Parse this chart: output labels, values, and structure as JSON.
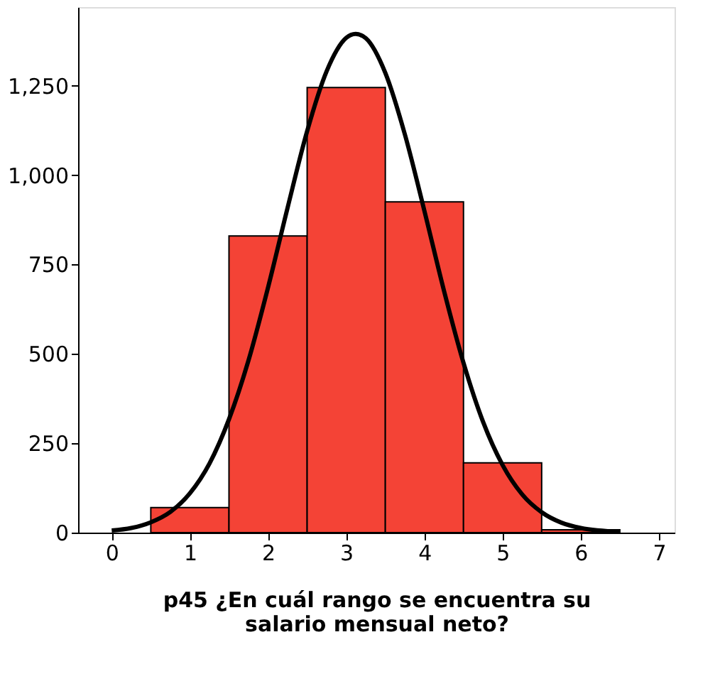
{
  "chart_data": {
    "type": "histogram",
    "xlabel": "p45 ¿En cuál rango se encuentra su\nsalario mensual neto?",
    "bins": [
      0.5,
      1.5,
      2.5,
      3.5,
      4.5,
      5.5,
      6.5
    ],
    "values": [
      70,
      830,
      1245,
      925,
      195,
      8
    ],
    "color": "#f44336",
    "series": [
      {
        "type": "line",
        "color": "#000000",
        "x": [
          0,
          0.25,
          0.5,
          0.75,
          1,
          1.25,
          1.5,
          1.75,
          2,
          2.25,
          2.5,
          2.75,
          3,
          3.12,
          3.25,
          3.5,
          3.75,
          4,
          4.25,
          4.5,
          4.75,
          5,
          5.25,
          5.5,
          5.75,
          6,
          6.5
        ],
        "values": [
          6,
          13,
          29,
          58,
          110,
          193,
          317,
          482,
          686,
          909,
          1123,
          1291,
          1384,
          1395,
          1383,
          1286,
          1114,
          900,
          677,
          475,
          310,
          189,
          107,
          57,
          28,
          13,
          2
        ]
      }
    ],
    "xlim": [
      -0.43,
      7.2
    ],
    "xticks": [
      0,
      1,
      2,
      3,
      4,
      5,
      6,
      7
    ],
    "ylim": [
      0,
      1470
    ],
    "yticks": [
      0,
      250,
      500,
      750,
      {
        "value": 1000,
        "label": "1,000"
      },
      {
        "value": 1250,
        "label": "1,250"
      }
    ],
    "grid": false
  }
}
